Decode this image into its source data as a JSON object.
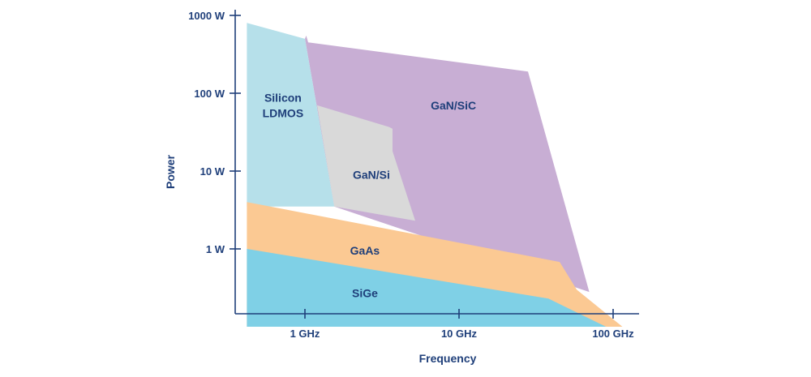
{
  "chart_data": {
    "type": "area",
    "title": "",
    "xlabel": "Frequency",
    "ylabel": "Power",
    "x_scale": "log",
    "y_scale": "log",
    "x_ticks": [
      {
        "value": 1,
        "label": "1 GHz"
      },
      {
        "value": 10,
        "label": "10 GHz"
      },
      {
        "value": 100,
        "label": "100 GHz"
      }
    ],
    "y_ticks": [
      {
        "value": 1,
        "label": "1 W"
      },
      {
        "value": 10,
        "label": "10 W"
      },
      {
        "value": 100,
        "label": "100 W"
      },
      {
        "value": 1000,
        "label": "1000 W"
      }
    ],
    "xlim": [
      0.4,
      150
    ],
    "ylim": [
      0.1,
      1500
    ],
    "regions": [
      {
        "name": "GaN/SiC",
        "label_lines": [
          "GaN/SiC"
        ],
        "label_at": [
          9.2,
          70
        ],
        "color": "#c8aed4",
        "points": [
          [
            1.0,
            500
          ],
          [
            1.02,
            550
          ],
          [
            1.05,
            450
          ],
          [
            28,
            190
          ],
          [
            70,
            0.28
          ],
          [
            1.55,
            3.5
          ]
        ]
      },
      {
        "name": "Silicon LDMOS",
        "label_lines": [
          "Silicon",
          "LDMOS"
        ],
        "label_at": [
          0.72,
          70
        ],
        "color": "#b6e0ea",
        "points": [
          [
            0.42,
            800
          ],
          [
            1.0,
            500
          ],
          [
            1.55,
            3.5
          ],
          [
            0.42,
            3.5
          ]
        ]
      },
      {
        "name": "GaN/Si",
        "label_lines": [
          "GaN/Si"
        ],
        "label_at": [
          2.7,
          9
        ],
        "color": "#d9d9d9",
        "points": [
          [
            1.2,
            70
          ],
          [
            3.5,
            37
          ],
          [
            3.7,
            35
          ],
          [
            3.7,
            18
          ],
          [
            5.2,
            2.3
          ],
          [
            1.55,
            3.5
          ]
        ]
      },
      {
        "name": "GaAs",
        "label_lines": [
          "GaAs"
        ],
        "label_at": [
          2.45,
          0.95
        ],
        "color": "#fbc993",
        "points": [
          [
            0.42,
            4
          ],
          [
            45,
            0.68
          ],
          [
            58,
            0.3
          ],
          [
            115,
            0.1
          ],
          [
            0.42,
            0.1
          ]
        ]
      },
      {
        "name": "SiGe",
        "label_lines": [
          "SiGe"
        ],
        "label_at": [
          2.45,
          0.27
        ],
        "color": "#7fd0e6",
        "points": [
          [
            0.42,
            1.0
          ],
          [
            38,
            0.23
          ],
          [
            90,
            0.1
          ],
          [
            0.42,
            0.1
          ]
        ]
      }
    ]
  }
}
